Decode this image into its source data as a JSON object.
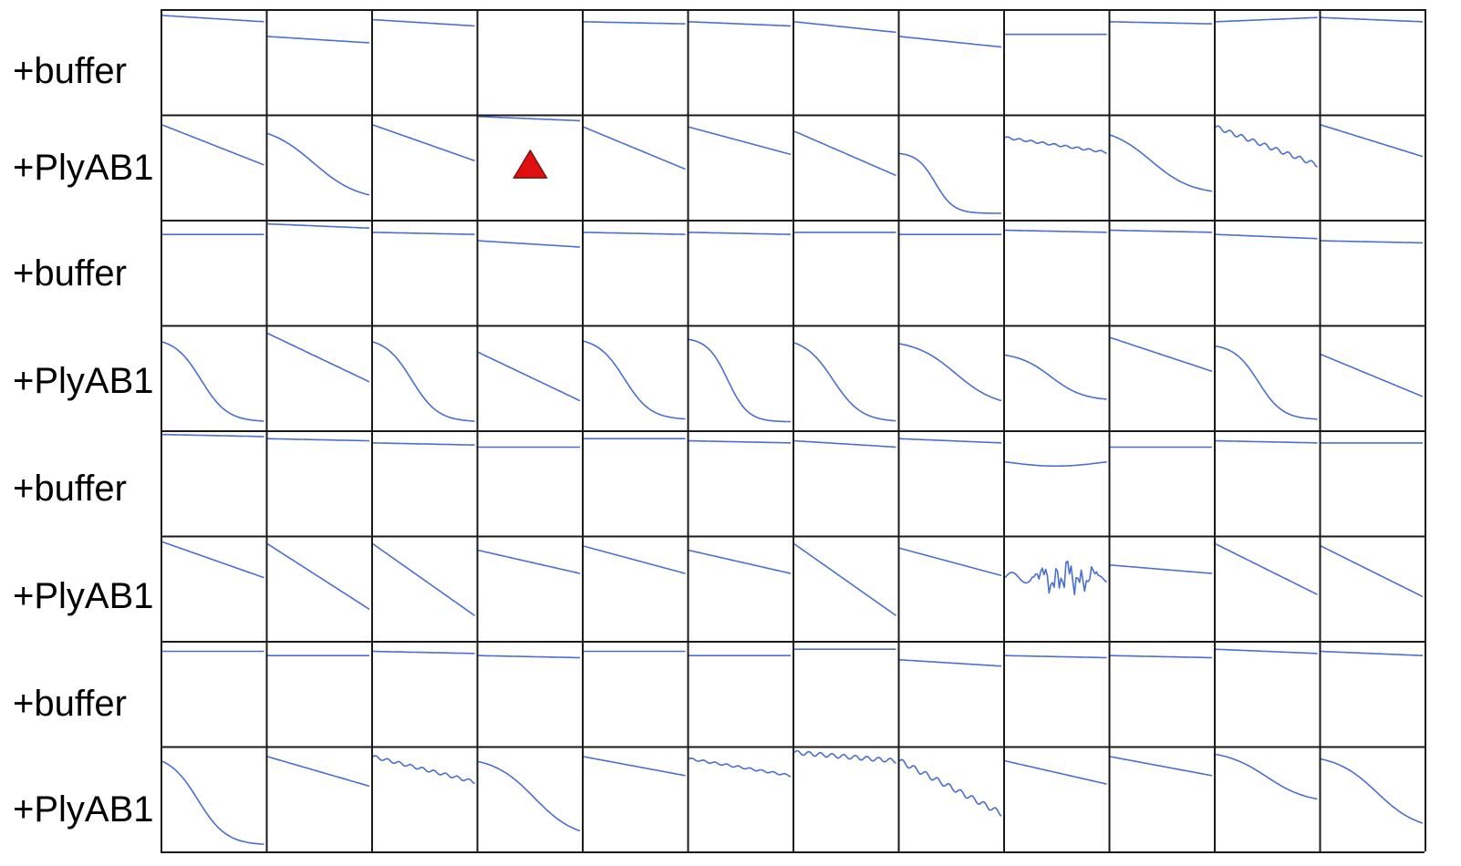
{
  "row_labels": [
    "+buffer",
    "+PlyAB1",
    "+buffer",
    "+PlyAB1",
    "+buffer",
    "+PlyAB1",
    "+buffer",
    "+PlyAB1"
  ],
  "colors": {
    "line": "#4a6fd0",
    "grid": "#1a1a1a",
    "marker_fill": "#e01010",
    "marker_stroke": "#7a1010"
  },
  "chart_data": {
    "type": "line",
    "description_rows": 8,
    "description_cols": 12,
    "ylim": [
      0,
      1
    ],
    "marker": {
      "row": 1,
      "col": 3,
      "shape": "triangle"
    },
    "curves": [
      [
        {
          "k": "flat",
          "a": 0.94,
          "b": 0.88
        },
        {
          "k": "flat",
          "a": 0.74,
          "b": 0.68
        },
        {
          "k": "flat",
          "a": 0.9,
          "b": 0.84
        },
        {
          "k": "flat",
          "a": 0.99,
          "b": 0.99
        },
        {
          "k": "flat",
          "a": 0.88,
          "b": 0.86
        },
        {
          "k": "flat",
          "a": 0.88,
          "b": 0.84
        },
        {
          "k": "flat",
          "a": 0.88,
          "b": 0.78
        },
        {
          "k": "flat",
          "a": 0.74,
          "b": 0.64
        },
        {
          "k": "flat",
          "a": 0.76,
          "b": 0.76
        },
        {
          "k": "flat",
          "a": 0.88,
          "b": 0.86
        },
        {
          "k": "flat",
          "a": 0.88,
          "b": 0.92
        },
        {
          "k": "flat",
          "a": 0.92,
          "b": 0.88
        }
      ],
      [
        {
          "k": "lin",
          "a": 0.9,
          "b": 0.52
        },
        {
          "k": "sig",
          "a": 0.9,
          "b": 0.18,
          "c": 0.45,
          "s": 0.22
        },
        {
          "k": "lin",
          "a": 0.9,
          "b": 0.56
        },
        {
          "k": "flat",
          "a": 0.98,
          "b": 0.94
        },
        {
          "k": "lin",
          "a": 0.88,
          "b": 0.48
        },
        {
          "k": "lin",
          "a": 0.88,
          "b": 0.62
        },
        {
          "k": "lin",
          "a": 0.84,
          "b": 0.42
        },
        {
          "k": "sig",
          "a": 0.64,
          "b": 0.06,
          "c": 0.35,
          "s": 0.09
        },
        {
          "k": "flat",
          "a": 0.78,
          "b": 0.64,
          "wig": 0.01
        },
        {
          "k": "sig",
          "a": 0.88,
          "b": 0.24,
          "c": 0.4,
          "s": 0.2
        },
        {
          "k": "lin",
          "a": 0.88,
          "b": 0.52,
          "wig": 0.02
        },
        {
          "k": "lin",
          "a": 0.9,
          "b": 0.6
        }
      ],
      [
        {
          "k": "flat",
          "a": 0.86,
          "b": 0.86
        },
        {
          "k": "flat",
          "a": 0.96,
          "b": 0.92
        },
        {
          "k": "flat",
          "a": 0.88,
          "b": 0.86
        },
        {
          "k": "flat",
          "a": 0.8,
          "b": 0.74
        },
        {
          "k": "flat",
          "a": 0.88,
          "b": 0.86
        },
        {
          "k": "flat",
          "a": 0.88,
          "b": 0.86
        },
        {
          "k": "flat",
          "a": 0.88,
          "b": 0.88
        },
        {
          "k": "flat",
          "a": 0.86,
          "b": 0.86
        },
        {
          "k": "flat",
          "a": 0.9,
          "b": 0.88
        },
        {
          "k": "flat",
          "a": 0.9,
          "b": 0.88
        },
        {
          "k": "flat",
          "a": 0.86,
          "b": 0.82
        },
        {
          "k": "flat",
          "a": 0.8,
          "b": 0.78
        }
      ],
      [
        {
          "k": "sig",
          "a": 0.88,
          "b": 0.08,
          "c": 0.38,
          "s": 0.13
        },
        {
          "k": "lin",
          "a": 0.92,
          "b": 0.46
        },
        {
          "k": "sig",
          "a": 0.88,
          "b": 0.08,
          "c": 0.38,
          "s": 0.13
        },
        {
          "k": "lin",
          "a": 0.74,
          "b": 0.28
        },
        {
          "k": "sig",
          "a": 0.88,
          "b": 0.1,
          "c": 0.4,
          "s": 0.13
        },
        {
          "k": "sig",
          "a": 0.88,
          "b": 0.08,
          "c": 0.38,
          "s": 0.1
        },
        {
          "k": "sig",
          "a": 0.88,
          "b": 0.08,
          "c": 0.38,
          "s": 0.14
        },
        {
          "k": "sig",
          "a": 0.86,
          "b": 0.22,
          "c": 0.55,
          "s": 0.2
        },
        {
          "k": "sig",
          "a": 0.74,
          "b": 0.28,
          "c": 0.45,
          "s": 0.16
        },
        {
          "k": "lin",
          "a": 0.88,
          "b": 0.56
        },
        {
          "k": "sig",
          "a": 0.82,
          "b": 0.1,
          "c": 0.42,
          "s": 0.12
        },
        {
          "k": "lin",
          "a": 0.72,
          "b": 0.32
        }
      ],
      [
        {
          "k": "flat",
          "a": 0.96,
          "b": 0.94
        },
        {
          "k": "flat",
          "a": 0.92,
          "b": 0.9
        },
        {
          "k": "flat",
          "a": 0.88,
          "b": 0.86
        },
        {
          "k": "flat",
          "a": 0.84,
          "b": 0.84
        },
        {
          "k": "flat",
          "a": 0.92,
          "b": 0.92
        },
        {
          "k": "flat",
          "a": 0.9,
          "b": 0.88
        },
        {
          "k": "flat",
          "a": 0.9,
          "b": 0.84
        },
        {
          "k": "flat",
          "a": 0.92,
          "b": 0.88
        },
        {
          "k": "dip",
          "a": 0.7,
          "b": 0.7,
          "d": 0.04
        },
        {
          "k": "flat",
          "a": 0.84,
          "b": 0.84
        },
        {
          "k": "flat",
          "a": 0.9,
          "b": 0.88
        },
        {
          "k": "flat",
          "a": 0.88,
          "b": 0.88
        }
      ],
      [
        {
          "k": "lin",
          "a": 0.94,
          "b": 0.6
        },
        {
          "k": "lin",
          "a": 0.92,
          "b": 0.3
        },
        {
          "k": "lin",
          "a": 0.92,
          "b": 0.24
        },
        {
          "k": "lin",
          "a": 0.86,
          "b": 0.64
        },
        {
          "k": "lin",
          "a": 0.9,
          "b": 0.64
        },
        {
          "k": "lin",
          "a": 0.86,
          "b": 0.64
        },
        {
          "k": "lin",
          "a": 0.92,
          "b": 0.24
        },
        {
          "k": "lin",
          "a": 0.88,
          "b": 0.62
        },
        {
          "k": "noise",
          "a": 0.6,
          "b": 0.6
        },
        {
          "k": "lin",
          "a": 0.72,
          "b": 0.64
        },
        {
          "k": "lin",
          "a": 0.92,
          "b": 0.44
        },
        {
          "k": "lin",
          "a": 0.9,
          "b": 0.42
        }
      ],
      [
        {
          "k": "flat",
          "a": 0.9,
          "b": 0.9
        },
        {
          "k": "flat",
          "a": 0.86,
          "b": 0.86
        },
        {
          "k": "flat",
          "a": 0.9,
          "b": 0.88
        },
        {
          "k": "flat",
          "a": 0.86,
          "b": 0.84
        },
        {
          "k": "flat",
          "a": 0.9,
          "b": 0.9
        },
        {
          "k": "flat",
          "a": 0.86,
          "b": 0.86
        },
        {
          "k": "flat",
          "a": 0.92,
          "b": 0.92
        },
        {
          "k": "flat",
          "a": 0.82,
          "b": 0.76
        },
        {
          "k": "flat",
          "a": 0.86,
          "b": 0.84
        },
        {
          "k": "flat",
          "a": 0.86,
          "b": 0.84
        },
        {
          "k": "flat",
          "a": 0.92,
          "b": 0.88
        },
        {
          "k": "flat",
          "a": 0.9,
          "b": 0.86
        }
      ],
      [
        {
          "k": "sig",
          "a": 0.92,
          "b": 0.06,
          "c": 0.35,
          "s": 0.14
        },
        {
          "k": "lin",
          "a": 0.9,
          "b": 0.62
        },
        {
          "k": "lin",
          "a": 0.9,
          "b": 0.66,
          "wig": 0.015
        },
        {
          "k": "sig",
          "a": 0.9,
          "b": 0.12,
          "c": 0.55,
          "s": 0.2
        },
        {
          "k": "lin",
          "a": 0.9,
          "b": 0.72
        },
        {
          "k": "lin",
          "a": 0.88,
          "b": 0.72,
          "wig": 0.01
        },
        {
          "k": "flat",
          "a": 0.94,
          "b": 0.86,
          "wig": 0.02
        },
        {
          "k": "lin",
          "a": 0.86,
          "b": 0.36,
          "wig": 0.025
        },
        {
          "k": "lin",
          "a": 0.86,
          "b": 0.64
        },
        {
          "k": "lin",
          "a": 0.9,
          "b": 0.72
        },
        {
          "k": "sig",
          "a": 0.96,
          "b": 0.46,
          "c": 0.5,
          "s": 0.2
        },
        {
          "k": "sig",
          "a": 0.92,
          "b": 0.2,
          "c": 0.55,
          "s": 0.2
        }
      ]
    ]
  }
}
